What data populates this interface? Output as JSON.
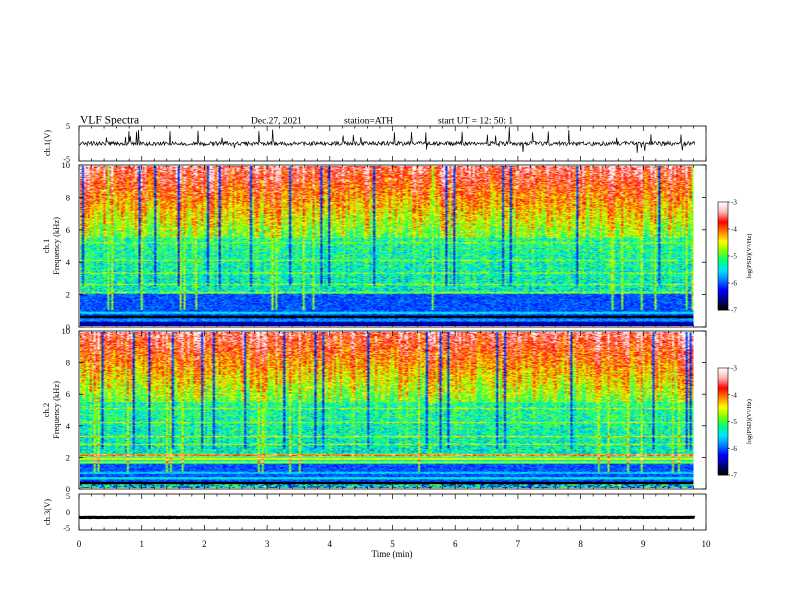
{
  "header": {
    "title": "VLF  Spectra",
    "date": "Dec.27, 2021",
    "station": "station=ATH",
    "start_time": "start  UT  =    12: 50: 1"
  },
  "chart_data": [
    {
      "type": "line",
      "name": "ch1-waveform",
      "ylabel": "ch.1(V)",
      "ylim": [
        -5,
        5
      ],
      "yticks": [
        "5",
        "-5"
      ],
      "xlim": [
        0,
        10
      ],
      "baseline": 0,
      "noise_amplitude": 1.2,
      "spike_amplitude": 3.5
    },
    {
      "type": "heatmap",
      "name": "ch1-spectrogram",
      "ylabel_channel": "ch.1",
      "ylabel": "Frequency  (kHz)",
      "ylim": [
        0,
        10
      ],
      "yticks": [
        "0",
        "2",
        "4",
        "6",
        "8",
        "10"
      ],
      "xlim": [
        0,
        9.8
      ],
      "colorbar": {
        "label": "log(PSD)(V²/Hz)",
        "min": -7,
        "max": -3,
        "ticks": [
          "-3",
          "-4",
          "-5",
          "-6",
          "-7"
        ]
      }
    },
    {
      "type": "heatmap",
      "name": "ch2-spectrogram",
      "ylabel_channel": "ch.2",
      "ylabel": "Frequency  (kHz)",
      "ylim": [
        0,
        10
      ],
      "yticks": [
        "0",
        "2",
        "4",
        "6",
        "8",
        "10"
      ],
      "xlim": [
        0,
        9.8
      ],
      "colorbar": {
        "label": "log(PSD)(V²/Hz)",
        "min": -7,
        "max": -3,
        "ticks": [
          "-3",
          "-4",
          "-5",
          "-6",
          "-7"
        ]
      }
    },
    {
      "type": "line",
      "name": "ch3-waveform",
      "ylabel": "ch.3(V)",
      "ylim": [
        -5,
        5
      ],
      "yticks": [
        "5",
        "0",
        "-5"
      ],
      "xlim": [
        0,
        10
      ],
      "baseline": -1.5,
      "noise_amplitude": 0.1,
      "spike_amplitude": 0
    }
  ],
  "xaxis": {
    "label": "Time  (min)",
    "ticks": [
      "0",
      "1",
      "2",
      "3",
      "4",
      "5",
      "6",
      "7",
      "8",
      "9",
      "10"
    ],
    "range": [
      0,
      10
    ]
  },
  "colors": {
    "colormap": [
      "#000000",
      "#00008b",
      "#0000ff",
      "#0080ff",
      "#00e5ff",
      "#00ff80",
      "#80ff00",
      "#ffff00",
      "#ff8000",
      "#ff0000",
      "#ffb0b0",
      "#ffffff"
    ],
    "trace": "#000000"
  }
}
